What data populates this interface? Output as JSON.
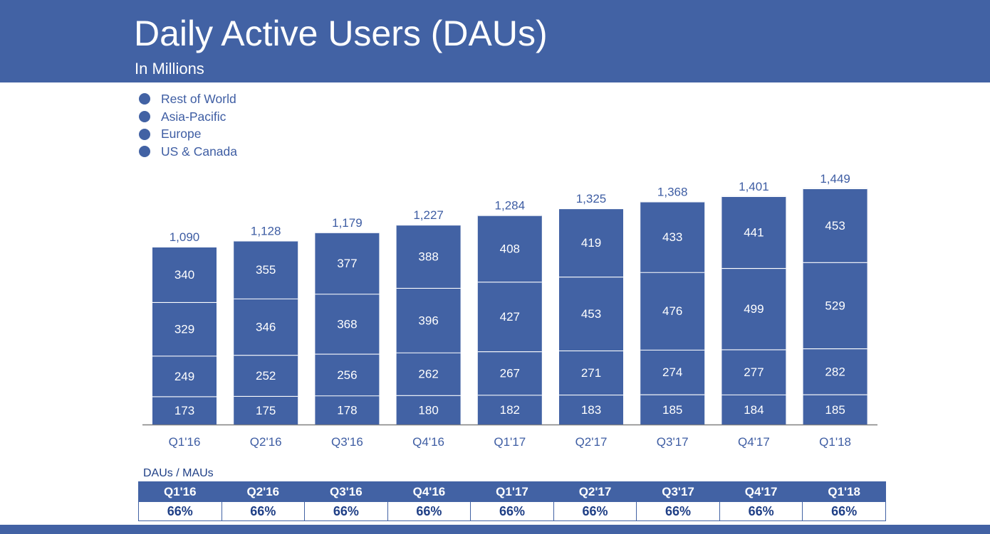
{
  "header": {
    "title": "Daily Active Users (DAUs)",
    "subtitle": "In Millions"
  },
  "colors": {
    "brand": "#4262a4",
    "text": "#3e5da3",
    "white": "#ffffff"
  },
  "chart_data": {
    "type": "bar",
    "stacked": true,
    "title": "Daily Active Users (DAUs)",
    "subtitle": "In Millions",
    "xlabel": "",
    "ylabel": "",
    "ylim": [
      0,
      1500
    ],
    "grid": false,
    "legend_position": "top-left",
    "categories": [
      "Q1'16",
      "Q2'16",
      "Q3'16",
      "Q4'16",
      "Q1'17",
      "Q2'17",
      "Q3'17",
      "Q4'17",
      "Q1'18"
    ],
    "series": [
      {
        "name": "US & Canada",
        "values": [
          173,
          175,
          178,
          180,
          182,
          183,
          185,
          184,
          185
        ]
      },
      {
        "name": "Europe",
        "values": [
          249,
          252,
          256,
          262,
          267,
          271,
          274,
          277,
          282
        ]
      },
      {
        "name": "Asia-Pacific",
        "values": [
          329,
          346,
          368,
          396,
          427,
          453,
          476,
          499,
          529
        ]
      },
      {
        "name": "Rest of World",
        "values": [
          340,
          355,
          377,
          388,
          408,
          419,
          433,
          441,
          453
        ]
      }
    ],
    "totals": [
      "1,090",
      "1,128",
      "1,179",
      "1,227",
      "1,284",
      "1,325",
      "1,368",
      "1,401",
      "1,449"
    ]
  },
  "legend": {
    "items": [
      "Rest of World",
      "Asia-Pacific",
      "Europe",
      "US & Canada"
    ]
  },
  "ratio": {
    "label": "DAUs / MAUs",
    "quarters": [
      "Q1'16",
      "Q2'16",
      "Q3'16",
      "Q4'16",
      "Q1'17",
      "Q2'17",
      "Q3'17",
      "Q4'17",
      "Q1'18"
    ],
    "values": [
      "66%",
      "66%",
      "66%",
      "66%",
      "66%",
      "66%",
      "66%",
      "66%",
      "66%"
    ]
  }
}
